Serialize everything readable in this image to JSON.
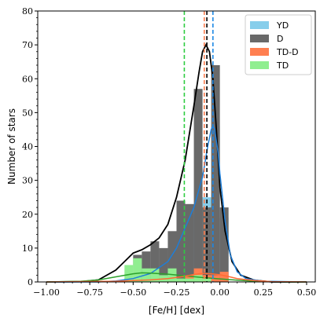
{
  "chart_data": {
    "type": "histogram",
    "xlabel": "[Fe/H] [dex]",
    "ylabel": "Number of stars",
    "xlim": [
      -1.05,
      0.55
    ],
    "ylim": [
      0,
      80
    ],
    "x_ticks": [
      -1.0,
      -0.75,
      -0.5,
      -0.25,
      0.0,
      0.25,
      0.5
    ],
    "x_tick_labels": [
      "−1.00",
      "−0.75",
      "−0.50",
      "−0.25",
      "0.00",
      "0.25",
      "0.50"
    ],
    "y_ticks": [
      0,
      10,
      20,
      30,
      40,
      50,
      60,
      70,
      80
    ],
    "y_tick_labels": [
      "0",
      "10",
      "20",
      "30",
      "40",
      "50",
      "60",
      "70",
      "80"
    ],
    "bin_edges": [
      -0.55,
      -0.5,
      -0.45,
      -0.4,
      -0.35,
      -0.3,
      -0.25,
      -0.2,
      -0.15,
      -0.1,
      -0.05,
      0.0,
      0.05
    ],
    "legend_position": "top-right",
    "series": [
      {
        "name": "YD",
        "color": "#87ceeb",
        "counts": [
          0,
          1,
          1,
          2,
          2,
          6,
          14,
          17,
          20,
          25,
          46,
          19
        ]
      },
      {
        "name": "D",
        "color": "#696969",
        "counts": [
          1,
          8,
          9,
          12,
          10,
          15,
          24,
          23,
          57,
          22,
          64,
          22
        ]
      },
      {
        "name": "TD-D",
        "color": "#ff7f50",
        "counts": [
          0,
          0,
          0,
          0,
          0,
          1,
          1,
          2,
          4,
          2,
          2,
          3
        ]
      },
      {
        "name": "TD",
        "color": "#90ee90",
        "counts": [
          5,
          7,
          4,
          4,
          2,
          4,
          1,
          1,
          2,
          1,
          0,
          0
        ]
      }
    ],
    "kde_curves": [
      {
        "series": "D",
        "color": "#000000",
        "points": [
          [
            -1.0,
            0
          ],
          [
            -0.8,
            0.1
          ],
          [
            -0.7,
            0.6
          ],
          [
            -0.6,
            3.5
          ],
          [
            -0.55,
            6
          ],
          [
            -0.5,
            8.5
          ],
          [
            -0.45,
            9.5
          ],
          [
            -0.4,
            11
          ],
          [
            -0.35,
            13
          ],
          [
            -0.3,
            17
          ],
          [
            -0.25,
            25
          ],
          [
            -0.2,
            36
          ],
          [
            -0.15,
            52
          ],
          [
            -0.12,
            62
          ],
          [
            -0.1,
            68
          ],
          [
            -0.08,
            70
          ],
          [
            -0.06,
            68
          ],
          [
            -0.04,
            60
          ],
          [
            -0.02,
            45
          ],
          [
            0.0,
            28
          ],
          [
            0.03,
            15
          ],
          [
            0.07,
            6
          ],
          [
            0.12,
            2
          ],
          [
            0.2,
            0.5
          ],
          [
            0.3,
            0
          ],
          [
            0.5,
            0
          ]
        ]
      },
      {
        "series": "YD",
        "color": "#1e7ed8",
        "points": [
          [
            -1.0,
            0
          ],
          [
            -0.7,
            0
          ],
          [
            -0.6,
            0.3
          ],
          [
            -0.5,
            1
          ],
          [
            -0.4,
            2.5
          ],
          [
            -0.3,
            6
          ],
          [
            -0.25,
            10
          ],
          [
            -0.2,
            16
          ],
          [
            -0.15,
            22
          ],
          [
            -0.1,
            31
          ],
          [
            -0.07,
            40
          ],
          [
            -0.05,
            45
          ],
          [
            -0.04,
            46
          ],
          [
            -0.03,
            45
          ],
          [
            -0.01,
            38
          ],
          [
            0.0,
            32
          ],
          [
            0.03,
            18
          ],
          [
            0.06,
            8
          ],
          [
            0.1,
            3
          ],
          [
            0.15,
            1
          ],
          [
            0.25,
            0.2
          ],
          [
            0.5,
            0
          ]
        ]
      },
      {
        "series": "TD",
        "color": "#2ca02c",
        "points": [
          [
            -1.0,
            0
          ],
          [
            -0.8,
            0.2
          ],
          [
            -0.7,
            0.6
          ],
          [
            -0.6,
            1.5
          ],
          [
            -0.5,
            2.4
          ],
          [
            -0.45,
            2.7
          ],
          [
            -0.4,
            2.6
          ],
          [
            -0.3,
            2.3
          ],
          [
            -0.2,
            1.8
          ],
          [
            -0.1,
            1.3
          ],
          [
            0.0,
            0.9
          ],
          [
            0.1,
            0.5
          ],
          [
            0.2,
            0.2
          ],
          [
            0.3,
            0.05
          ],
          [
            0.5,
            0
          ]
        ]
      },
      {
        "series": "TD-D",
        "color": "#ff6a33",
        "points": [
          [
            -1.0,
            0
          ],
          [
            -0.6,
            0.2
          ],
          [
            -0.4,
            0.6
          ],
          [
            -0.3,
            1
          ],
          [
            -0.2,
            1.7
          ],
          [
            -0.15,
            2.2
          ],
          [
            -0.1,
            2.5
          ],
          [
            -0.05,
            2.4
          ],
          [
            0.0,
            2.1
          ],
          [
            0.05,
            1.6
          ],
          [
            0.1,
            1
          ],
          [
            0.2,
            0.4
          ],
          [
            0.3,
            0.1
          ],
          [
            0.5,
            0
          ]
        ]
      }
    ],
    "vlines": [
      {
        "x": -0.205,
        "color": "#2ecc40"
      },
      {
        "x": -0.09,
        "color": "#ff7f50"
      },
      {
        "x": -0.075,
        "color": "#000000"
      },
      {
        "x": -0.04,
        "color": "#1e88e5"
      }
    ]
  }
}
